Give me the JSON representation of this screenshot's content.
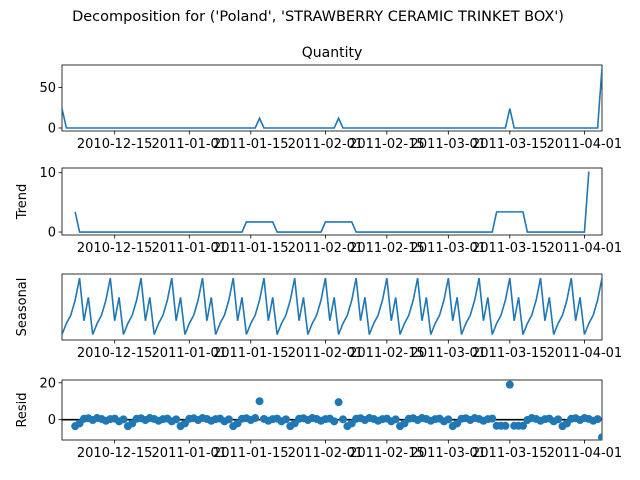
{
  "figure": {
    "suptitle": "Decomposition for ('Poland', 'STRAWBERRY CERAMIC TRINKET BOX')"
  },
  "chart_data": {
    "type": "line",
    "x_tick_labels": [
      "2010-12-15",
      "2011-01-01",
      "2011-01-15",
      "2011-02-01",
      "2011-02-15",
      "2011-03-01",
      "2011-03-15",
      "2011-04-01"
    ],
    "x_ticks": [
      "2010-12-15",
      "2011-01-01",
      "2011-01-15",
      "2011-02-01",
      "2011-02-15",
      "2011-03-01",
      "2011-03-15",
      "2011-04-01"
    ],
    "x_range": [
      "2010-12-03",
      "2011-04-05"
    ],
    "colors": {
      "line": "#1f77b4",
      "zero_line": "#000000"
    },
    "panels": [
      {
        "name": "Quantity",
        "title": "Quantity",
        "ylabel": "",
        "type": "line",
        "ylim": [
          -3.7,
          77.6
        ],
        "yticks": [
          0,
          50
        ],
        "series": [
          {
            "x": "2010-12-03",
            "y": 24
          },
          {
            "x": "2010-12-04",
            "y": 0
          },
          {
            "x": "2011-01-16",
            "y": 0
          },
          {
            "x": "2011-01-17",
            "y": 12
          },
          {
            "x": "2011-01-18",
            "y": 0
          },
          {
            "x": "2011-02-03",
            "y": 0
          },
          {
            "x": "2011-02-04",
            "y": 12
          },
          {
            "x": "2011-02-05",
            "y": 0
          },
          {
            "x": "2011-03-14",
            "y": 0
          },
          {
            "x": "2011-03-15",
            "y": 24
          },
          {
            "x": "2011-03-16",
            "y": 0
          },
          {
            "x": "2011-04-04",
            "y": 0
          },
          {
            "x": "2011-04-05",
            "y": 74
          }
        ]
      },
      {
        "name": "Trend",
        "title": "",
        "ylabel": "Trend",
        "type": "line",
        "ylim": [
          -0.5,
          10.8
        ],
        "yticks": [
          0,
          10
        ],
        "series": [
          {
            "x": "2010-12-06",
            "y": 3.4
          },
          {
            "x": "2010-12-07",
            "y": 0
          },
          {
            "x": "2011-01-13",
            "y": 0
          },
          {
            "x": "2011-01-14",
            "y": 1.7
          },
          {
            "x": "2011-01-20",
            "y": 1.7
          },
          {
            "x": "2011-01-21",
            "y": 0
          },
          {
            "x": "2011-01-31",
            "y": 0
          },
          {
            "x": "2011-02-01",
            "y": 1.7
          },
          {
            "x": "2011-02-07",
            "y": 1.7
          },
          {
            "x": "2011-02-08",
            "y": 0
          },
          {
            "x": "2011-03-11",
            "y": 0
          },
          {
            "x": "2011-03-12",
            "y": 3.4
          },
          {
            "x": "2011-03-18",
            "y": 3.4
          },
          {
            "x": "2011-03-19",
            "y": 0
          },
          {
            "x": "2011-04-01",
            "y": 0
          },
          {
            "x": "2011-04-02",
            "y": 10.2
          }
        ]
      },
      {
        "name": "Seasonal",
        "title": "",
        "ylabel": "Seasonal",
        "type": "line",
        "ylim": [
          -1.2,
          1.2
        ],
        "yticks": [],
        "period": 7,
        "cycle_start": "2010-12-03",
        "pattern": [
          -1.0,
          -0.6,
          -0.3,
          0.25,
          1.05,
          -0.5,
          0.35
        ]
      },
      {
        "name": "Resid",
        "title": "",
        "ylabel": "Resid",
        "type": "scatter",
        "ylim": [
          -11,
          21.5
        ],
        "yticks": [
          0,
          20
        ],
        "zero_line": true,
        "outliers": [
          {
            "x": "2011-01-17",
            "y": 10
          },
          {
            "x": "2011-02-04",
            "y": 9.5
          },
          {
            "x": "2011-03-15",
            "y": 19
          },
          {
            "x": "2011-04-05",
            "y": -9.5
          }
        ],
        "baseline": [
          -3.5,
          -2,
          0.5,
          0.8,
          -0.2,
          0.9,
          0.4,
          -0.6,
          0.3,
          0.6,
          -0.9,
          0.2
        ]
      }
    ]
  }
}
